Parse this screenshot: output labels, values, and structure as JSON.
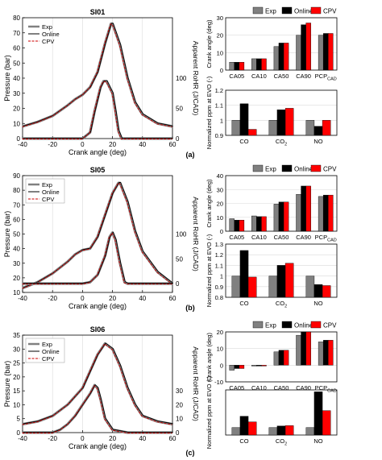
{
  "panels": [
    {
      "label": "(a)",
      "pressure_chart": {
        "title": "SI01",
        "xlabel": "Crank angle (deg)",
        "ylabel": "Pressure (bar)",
        "ylabel_right": "Apparent RoHR (J/CAD)",
        "xlim": [
          -40,
          60
        ],
        "xticks": [
          -40,
          -20,
          0,
          20,
          40,
          60
        ],
        "ylim": [
          0,
          80
        ],
        "yticks": [
          0,
          10,
          20,
          30,
          40,
          50,
          60,
          70,
          80
        ],
        "right_ticks": [
          {
            "label": "0",
            "at": 0
          },
          {
            "label": "50",
            "at": 20
          },
          {
            "label": "100",
            "at": 40
          }
        ],
        "legend": [
          "Exp",
          "Online",
          "CPV"
        ],
        "pressure": {
          "x": [
            -40,
            -30,
            -20,
            -10,
            -5,
            0,
            5,
            10,
            15,
            19,
            20,
            25,
            30,
            35,
            40,
            50,
            60
          ],
          "y": [
            8,
            11,
            15,
            22,
            26,
            29,
            34,
            44,
            63,
            76,
            76,
            62,
            40,
            24,
            16,
            10,
            8
          ]
        },
        "rohr": {
          "x": [
            -40,
            -10,
            0,
            5,
            8,
            12,
            14,
            16,
            20,
            22,
            24,
            26,
            30,
            40,
            60
          ],
          "y": [
            0,
            0,
            0,
            4,
            18,
            34,
            38,
            38,
            30,
            18,
            5,
            0,
            0,
            0,
            0
          ]
        }
      },
      "bar_top": {
        "ylabel": "Crank angle (deg)",
        "legend": [
          "Exp",
          "Online",
          "CPV"
        ],
        "categories": [
          "CA05",
          "CA10",
          "CA50",
          "CA90",
          "PCP"
        ],
        "ylim": [
          0,
          30
        ],
        "yticks": [
          0,
          10,
          20,
          30
        ],
        "series": [
          {
            "name": "Exp",
            "values": [
              4.5,
              6.5,
              13.5,
              20,
              20
            ]
          },
          {
            "name": "Online",
            "values": [
              4.5,
              6.5,
              15.5,
              26,
              21
            ]
          },
          {
            "name": "CPV",
            "values": [
              4.5,
              6.5,
              15.5,
              27,
              21
            ]
          }
        ]
      },
      "bar_bottom": {
        "ylabel": "Normalized ppm at EVO (-)",
        "categories": [
          "CO",
          "CO",
          "NO"
        ],
        "ylim": [
          0.9,
          1.2
        ],
        "yticks": [
          "0.9",
          "1",
          "1.1",
          "1.2"
        ],
        "series": [
          {
            "name": "Exp",
            "values": [
              1.0,
              1.0,
              1.0
            ]
          },
          {
            "name": "Online",
            "values": [
              1.11,
              1.07,
              0.96
            ]
          },
          {
            "name": "CPV",
            "values": [
              0.94,
              1.08,
              1.0
            ]
          }
        ]
      }
    },
    {
      "label": "(b)",
      "pressure_chart": {
        "title": "SI05",
        "xlabel": "Crank angle (deg)",
        "ylabel": "Pressure (bar)",
        "ylabel_right": "Apparent RoHR (J/CAD)",
        "xlim": [
          -40,
          60
        ],
        "xticks": [
          -40,
          -20,
          0,
          20,
          40,
          60
        ],
        "ylim": [
          10,
          90
        ],
        "yticks": [
          10,
          20,
          30,
          40,
          50,
          60,
          70,
          80,
          90
        ],
        "right_ticks": [
          {
            "label": "0",
            "at": 16
          },
          {
            "label": "50",
            "at": 33
          },
          {
            "label": "100",
            "at": 50
          }
        ],
        "legend": [
          "Exp",
          "Online",
          "CPV"
        ],
        "pressure": {
          "x": [
            -40,
            -30,
            -20,
            -10,
            -5,
            0,
            5,
            10,
            15,
            20,
            24,
            25,
            30,
            35,
            40,
            50,
            60
          ],
          "y": [
            13,
            17,
            23,
            31,
            36,
            39,
            40,
            48,
            63,
            78,
            85,
            85,
            72,
            52,
            38,
            24,
            16
          ]
        },
        "rohr": {
          "x": [
            -40,
            -10,
            0,
            5,
            10,
            15,
            18,
            20,
            22,
            25,
            28,
            30,
            40,
            60
          ],
          "y": [
            16,
            16,
            16,
            17,
            22,
            35,
            48,
            51,
            46,
            30,
            17,
            16,
            16,
            16
          ]
        }
      },
      "bar_top": {
        "ylabel": "Crank angle (deg)",
        "legend": [
          "Exp",
          "Online",
          "CPV"
        ],
        "categories": [
          "CA05",
          "CA10",
          "CA50",
          "CA90",
          "PCP"
        ],
        "ylim": [
          0,
          40
        ],
        "yticks": [
          0,
          10,
          20,
          30,
          40
        ],
        "series": [
          {
            "name": "Exp",
            "values": [
              9,
              11,
              19.5,
              26.5,
              25
            ]
          },
          {
            "name": "Online",
            "values": [
              8,
              10.5,
              21,
              32.5,
              26
            ]
          },
          {
            "name": "CPV",
            "values": [
              8,
              10.5,
              21,
              32.5,
              26
            ]
          }
        ]
      },
      "bar_bottom": {
        "ylabel": "Normalized ppm at EVO (-)",
        "categories": [
          "CO",
          "CO",
          "NO"
        ],
        "ylim": [
          0.8,
          1.3
        ],
        "yticks": [
          "0.8",
          "0.9",
          "1",
          "1.1",
          "1.2",
          "1.3"
        ],
        "series": [
          {
            "name": "Exp",
            "values": [
              1.0,
              1.0,
              1.0
            ]
          },
          {
            "name": "Online",
            "values": [
              1.24,
              1.1,
              0.92
            ]
          },
          {
            "name": "CPV",
            "values": [
              0.99,
              1.12,
              0.91
            ]
          }
        ]
      }
    },
    {
      "label": "(c)",
      "pressure_chart": {
        "title": "SI06",
        "xlabel": "Crank angle (deg)",
        "ylabel": "Pressure (bar)",
        "ylabel_right": "Apparent RoHR (J/CAD)",
        "xlim": [
          -40,
          60
        ],
        "xticks": [
          -40,
          -20,
          0,
          20,
          40,
          60
        ],
        "ylim": [
          0,
          35
        ],
        "yticks": [
          0,
          5,
          10,
          15,
          20,
          25,
          30,
          35
        ],
        "right_ticks": [
          {
            "label": "0",
            "at": 0
          },
          {
            "label": "10",
            "at": 5
          },
          {
            "label": "20",
            "at": 10
          },
          {
            "label": "30",
            "at": 15
          }
        ],
        "legend": [
          "Exp",
          "Online",
          "CPV"
        ],
        "pressure": {
          "x": [
            -40,
            -30,
            -20,
            -10,
            0,
            5,
            10,
            15,
            20,
            25,
            30,
            35,
            40,
            50,
            60
          ],
          "y": [
            3,
            4,
            6,
            10,
            16,
            22,
            28,
            32,
            30,
            24,
            16,
            10,
            6,
            4,
            3
          ]
        },
        "rohr": {
          "x": [
            -40,
            -20,
            -15,
            -10,
            -5,
            0,
            5,
            8,
            10,
            12,
            15,
            20,
            30,
            60
          ],
          "y": [
            0,
            0,
            1,
            3,
            6,
            10,
            14,
            17,
            16,
            12,
            5,
            1,
            0,
            0
          ]
        }
      },
      "bar_top": {
        "ylabel": "Crank angle (deg)",
        "legend": [
          "Exp",
          "Online",
          "CPV"
        ],
        "categories": [
          "CA05",
          "CA10",
          "CA50",
          "CA90",
          "PCP"
        ],
        "ylim": [
          -10,
          20
        ],
        "yticks": [
          -10,
          0,
          10,
          20
        ],
        "series": [
          {
            "name": "Exp",
            "values": [
              -3,
              -0.5,
              8,
              18,
              14
            ]
          },
          {
            "name": "Online",
            "values": [
              -2,
              -0.5,
              9,
              22,
              15
            ]
          },
          {
            "name": "CPV",
            "values": [
              -2,
              -0.5,
              9,
              22,
              15
            ]
          }
        ]
      },
      "bar_bottom": {
        "ylabel": "Normalized ppm at EVO (-)",
        "categories": [
          "CO",
          "CO",
          "NO"
        ],
        "ylim": [
          0.8,
          2.0
        ],
        "yticks": [],
        "series": [
          {
            "name": "Exp",
            "values": [
              1.0,
              1.0,
              1.0
            ]
          },
          {
            "name": "Online",
            "values": [
              1.3,
              1.04,
              1.95
            ]
          },
          {
            "name": "CPV",
            "values": [
              1.15,
              1.05,
              1.45
            ]
          }
        ]
      }
    }
  ],
  "subscripts": {
    "pcp": "CAD",
    "co2": "2"
  },
  "colors": {
    "exp": "#808080",
    "online": "#000000",
    "cpv": "#ff0000",
    "cpv_line": "#cc0000",
    "grid": "#d9d9d9"
  },
  "chart_data": [
    {
      "type": "line",
      "title": "SI01",
      "xlabel": "Crank angle (deg)",
      "ylabel": "Pressure (bar)",
      "xlim": [
        -40,
        60
      ],
      "ylim": [
        0,
        80
      ],
      "series": [
        {
          "name": "Exp"
        },
        {
          "name": "Online"
        },
        {
          "name": "CPV"
        }
      ]
    },
    {
      "type": "bar",
      "ylabel": "Crank angle (deg)",
      "categories": [
        "CA05",
        "CA10",
        "CA50",
        "CA90",
        "PCP"
      ],
      "series": [
        {
          "name": "Exp",
          "values": [
            4.5,
            6.5,
            13.5,
            20,
            20
          ]
        },
        {
          "name": "Online",
          "values": [
            4.5,
            6.5,
            15.5,
            26,
            21
          ]
        },
        {
          "name": "CPV",
          "values": [
            4.5,
            6.5,
            15.5,
            27,
            21
          ]
        }
      ]
    },
    {
      "type": "line",
      "title": "SI05",
      "xlabel": "Crank angle (deg)",
      "ylabel": "Pressure (bar)",
      "xlim": [
        -40,
        60
      ],
      "ylim": [
        10,
        90
      ],
      "series": [
        {
          "name": "Exp"
        },
        {
          "name": "Online"
        },
        {
          "name": "CPV"
        }
      ]
    },
    {
      "type": "line",
      "title": "SI06",
      "xlabel": "Crank angle (deg)",
      "ylabel": "Pressure (bar)",
      "xlim": [
        -40,
        60
      ],
      "ylim": [
        0,
        35
      ],
      "series": [
        {
          "name": "Exp"
        },
        {
          "name": "Online"
        },
        {
          "name": "CPV"
        }
      ]
    }
  ]
}
